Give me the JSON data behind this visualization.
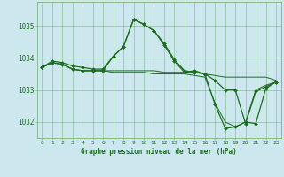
{
  "title": "Graphe pression niveau de la mer (hPa)",
  "bg_color": "#cce8ee",
  "grid_color": "#6aab6a",
  "line_color": "#1a6e1a",
  "marker_color": "#1a6e1a",
  "xlim": [
    -0.5,
    23.5
  ],
  "ylim": [
    1031.5,
    1035.75
  ],
  "yticks": [
    1032,
    1033,
    1034,
    1035
  ],
  "xticks": [
    0,
    1,
    2,
    3,
    4,
    5,
    6,
    7,
    8,
    9,
    10,
    11,
    12,
    13,
    14,
    15,
    16,
    17,
    18,
    19,
    20,
    21,
    22,
    23
  ],
  "series": [
    [
      1033.7,
      1033.9,
      1033.85,
      1033.75,
      1033.7,
      1033.65,
      1033.65,
      1034.05,
      1034.35,
      1035.2,
      1035.05,
      1034.85,
      1034.45,
      1033.95,
      1033.6,
      1033.55,
      1033.5,
      1033.3,
      1033.0,
      1033.0,
      1031.95,
      1032.95,
      1033.1,
      1033.25
    ],
    [
      1033.7,
      1033.85,
      1033.8,
      1033.65,
      1033.6,
      1033.6,
      1033.6,
      1033.6,
      1033.6,
      1033.6,
      1033.6,
      1033.6,
      1033.55,
      1033.55,
      1033.55,
      1033.55,
      1033.5,
      1033.45,
      1033.4,
      1033.4,
      1033.4,
      1033.4,
      1033.4,
      1033.3
    ],
    [
      1033.7,
      1033.85,
      1033.8,
      1033.65,
      1033.6,
      1033.6,
      1033.6,
      1033.55,
      1033.55,
      1033.55,
      1033.55,
      1033.5,
      1033.5,
      1033.5,
      1033.5,
      1033.45,
      1033.4,
      1032.6,
      1032.0,
      1031.85,
      1032.0,
      1033.0,
      1033.15,
      1033.25
    ],
    [
      1033.7,
      1033.85,
      1033.8,
      1033.65,
      1033.6,
      1033.6,
      1033.6,
      1034.05,
      1034.35,
      1035.2,
      1035.05,
      1034.85,
      1034.4,
      1033.9,
      1033.55,
      1033.6,
      1033.5,
      1032.55,
      1031.8,
      1031.85,
      1032.0,
      1031.95,
      1033.05,
      1033.25
    ]
  ]
}
